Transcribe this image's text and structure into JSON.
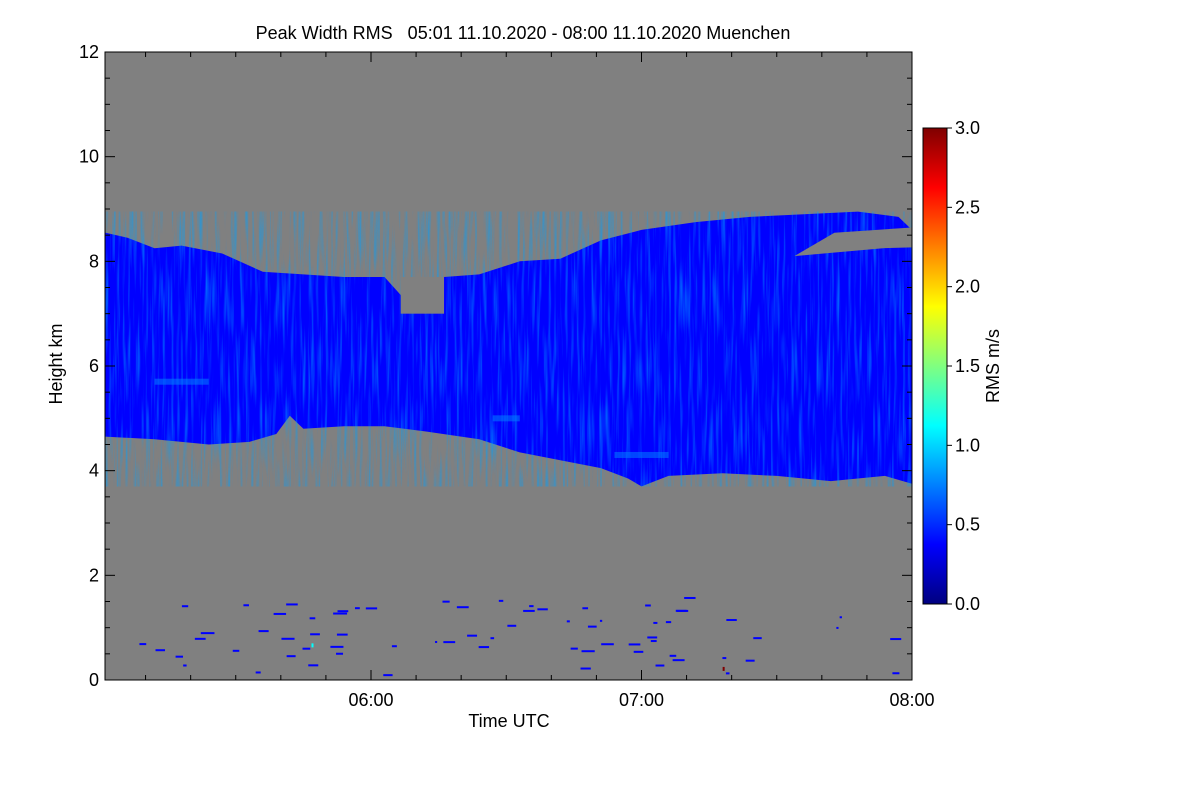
{
  "title": "Peak Width RMS   05:01 11.10.2020 - 08:00 11.10.2020 Muenchen",
  "chart_data": {
    "type": "heatmap",
    "title": "Peak Width RMS   05:01 11.10.2020 - 08:00 11.10.2020 Muenchen",
    "xlabel": "Time UTC",
    "ylabel": "Height km",
    "x_range": [
      "05:01",
      "08:00"
    ],
    "xlim_hours": [
      5.0167,
      8.0
    ],
    "ylim": [
      0,
      12
    ],
    "x_tick_labels": [
      "06:00",
      "07:00",
      "08:00"
    ],
    "x_ticks_hours": [
      6.0,
      7.0,
      8.0
    ],
    "y_ticks": [
      0,
      2,
      4,
      6,
      8,
      10,
      12
    ],
    "background_color": "#808080",
    "colorbar": {
      "label": "RMS m/s",
      "range": [
        0.0,
        3.0
      ],
      "ticks": [
        0.0,
        0.5,
        1.0,
        1.5,
        2.0,
        2.5,
        3.0
      ],
      "tick_labels": [
        "0.0",
        "0.5",
        "1.0",
        "1.5",
        "2.0",
        "2.5",
        "3.0"
      ],
      "colormap": [
        "#00007f",
        "#0000ff",
        "#0080ff",
        "#00ffff",
        "#80ff80",
        "#ffff00",
        "#ff8000",
        "#ff0000",
        "#7f0000"
      ]
    },
    "cloud_layer": {
      "typical_value": 0.35,
      "top_km": [
        [
          5.017,
          8.55
        ],
        [
          5.1,
          8.45
        ],
        [
          5.2,
          8.25
        ],
        [
          5.3,
          8.3
        ],
        [
          5.45,
          8.15
        ],
        [
          5.6,
          7.8
        ],
        [
          5.75,
          7.75
        ],
        [
          5.9,
          7.7
        ],
        [
          6.05,
          7.7
        ],
        [
          6.12,
          7.3
        ],
        [
          6.2,
          7.0
        ],
        [
          6.27,
          7.7
        ],
        [
          6.4,
          7.75
        ],
        [
          6.55,
          8.0
        ],
        [
          6.7,
          8.05
        ],
        [
          6.85,
          8.4
        ],
        [
          7.0,
          8.6
        ],
        [
          7.2,
          8.75
        ],
        [
          7.4,
          8.85
        ],
        [
          7.6,
          8.9
        ],
        [
          7.8,
          8.95
        ],
        [
          7.95,
          8.85
        ],
        [
          8.0,
          8.6
        ]
      ],
      "base_km": [
        [
          5.017,
          4.65
        ],
        [
          5.2,
          4.6
        ],
        [
          5.4,
          4.5
        ],
        [
          5.55,
          4.55
        ],
        [
          5.65,
          4.7
        ],
        [
          5.7,
          5.05
        ],
        [
          5.75,
          4.8
        ],
        [
          5.9,
          4.85
        ],
        [
          6.05,
          4.85
        ],
        [
          6.2,
          4.75
        ],
        [
          6.4,
          4.6
        ],
        [
          6.55,
          4.35
        ],
        [
          6.7,
          4.2
        ],
        [
          6.85,
          4.05
        ],
        [
          6.95,
          3.85
        ],
        [
          7.0,
          3.7
        ],
        [
          7.1,
          3.9
        ],
        [
          7.3,
          3.95
        ],
        [
          7.5,
          3.9
        ],
        [
          7.7,
          3.8
        ],
        [
          7.9,
          3.9
        ],
        [
          8.0,
          3.75
        ]
      ],
      "gaps": [
        {
          "x_hours": [
            6.11,
            6.27
          ],
          "top_km": 7.7,
          "bottom_km": 7.0
        }
      ],
      "holes": [
        {
          "time_hours": 7.75,
          "height_range_km": [
            8.1,
            8.7
          ],
          "note": "grey gap near top at 07:30-08:00"
        }
      ],
      "bright_streaks": [
        {
          "time_hours": [
            6.9,
            7.1
          ],
          "height_km": 4.3,
          "value": 0.9
        },
        {
          "time_hours": [
            6.45,
            6.55
          ],
          "height_km": 5.0,
          "value": 0.7
        },
        {
          "time_hours": [
            5.2,
            5.4
          ],
          "height_km": 5.7,
          "value": 0.7
        }
      ]
    },
    "low_level_speckles": {
      "height_range_km": [
        0.1,
        1.6
      ],
      "typical_value": 0.3,
      "outliers": [
        {
          "time_hours": 7.3,
          "height_km": 0.25,
          "value": 3.0
        },
        {
          "time_hours": 5.78,
          "height_km": 0.7,
          "value": 1.2
        }
      ]
    }
  }
}
